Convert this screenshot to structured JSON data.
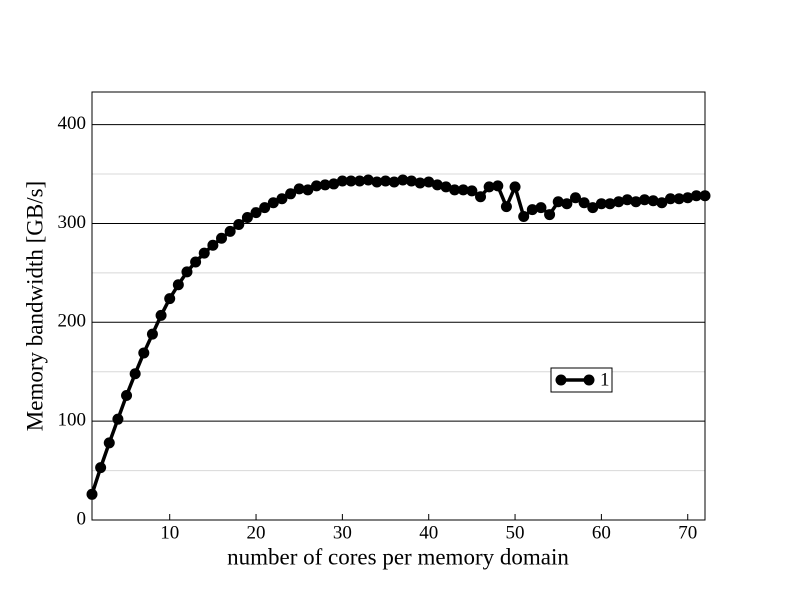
{
  "chart_data": {
    "type": "line",
    "xlabel": "number of cores per memory domain",
    "ylabel": "Memory bandwidth [GB/s]",
    "x": [
      1,
      2,
      3,
      4,
      5,
      6,
      7,
      8,
      9,
      10,
      11,
      12,
      13,
      14,
      15,
      16,
      17,
      18,
      19,
      20,
      21,
      22,
      23,
      24,
      25,
      26,
      27,
      28,
      29,
      30,
      31,
      32,
      33,
      34,
      35,
      36,
      37,
      38,
      39,
      40,
      41,
      42,
      43,
      44,
      45,
      46,
      47,
      48,
      49,
      50,
      51,
      52,
      53,
      54,
      55,
      56,
      57,
      58,
      59,
      60,
      61,
      62,
      63,
      64,
      65,
      66,
      67,
      68,
      69,
      70,
      71,
      72
    ],
    "series": [
      {
        "name": "1",
        "color": "#000000",
        "values": [
          26,
          53,
          78,
          102,
          126,
          148,
          169,
          188,
          207,
          224,
          238,
          251,
          261,
          270,
          278,
          285,
          292,
          299,
          306,
          311,
          316,
          321,
          325,
          330,
          335,
          334,
          338,
          339,
          340,
          343,
          343,
          343,
          344,
          342,
          343,
          342,
          344,
          343,
          341,
          342,
          339,
          337,
          334,
          334,
          333,
          327,
          337,
          338,
          317,
          337,
          307,
          314,
          316,
          309,
          322,
          320,
          326,
          321,
          316,
          320,
          320,
          322,
          324,
          322,
          324,
          323,
          321,
          325,
          325,
          326,
          328,
          328
        ]
      }
    ],
    "xlim": [
      1,
      72
    ],
    "xticks": [
      10,
      20,
      30,
      40,
      50,
      60,
      70
    ],
    "ylim": [
      0,
      433
    ],
    "yticks": [
      0,
      100,
      200,
      300,
      400
    ],
    "minor_yticks": [
      50,
      150,
      250,
      350
    ],
    "grid": true,
    "legend_position": "right"
  }
}
